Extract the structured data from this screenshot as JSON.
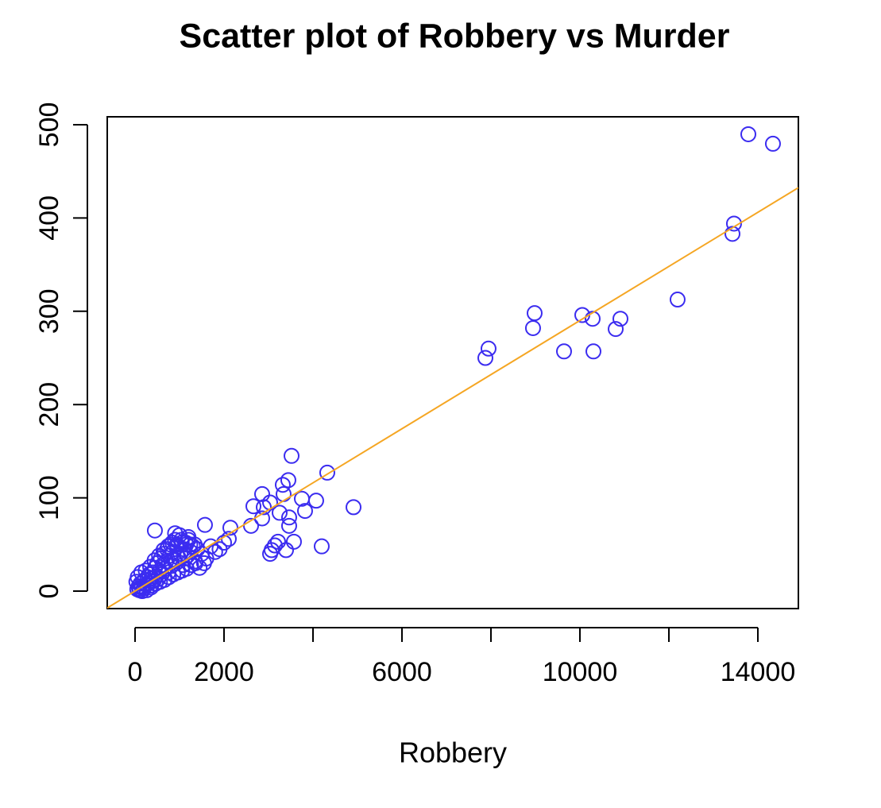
{
  "chart_data": {
    "type": "scatter",
    "title": "Scatter plot of Robbery vs Murder",
    "x_label": "Robbery",
    "color": "#3b2cf0",
    "fit": {
      "intercept": 0.1,
      "slope": 0.029,
      "color": "#f5a623"
    },
    "xlim": [
      -625,
      14911
    ],
    "ylim": [
      -18.7,
      508.5
    ],
    "xticks": [
      0,
      2000,
      {
        "value": 4000,
        "label": null
      },
      6000,
      {
        "value": 8000,
        "label": null
      },
      10000,
      {
        "value": 12000,
        "label": null
      },
      14000
    ],
    "yticks": [
      0,
      100,
      200,
      300,
      400,
      500
    ],
    "x": [
      14339,
      13786,
      13429,
      13464,
      12196,
      10911,
      10804,
      10304,
      10286,
      10054,
      9643,
      8982,
      8946,
      7946,
      7875,
      4911,
      4321,
      4196,
      4071,
      3821,
      3750,
      3571,
      3518,
      3446,
      3321,
      3339,
      3464,
      3464,
      3393,
      3214,
      3143,
      3071,
      3036,
      3250,
      3036,
      2893,
      2857,
      2661,
      2607,
      2857,
      50,
      80,
      100,
      120,
      150,
      180,
      200,
      220,
      250,
      280,
      300,
      320,
      350,
      380,
      400,
      420,
      450,
      480,
      500,
      520,
      550,
      580,
      600,
      620,
      650,
      680,
      700,
      720,
      750,
      780,
      800,
      820,
      850,
      880,
      900,
      920,
      950,
      980,
      1000,
      1020,
      1050,
      1080,
      1100,
      1120,
      1150,
      1180,
      1200,
      1250,
      1300,
      1350,
      1400,
      1450,
      1500,
      1550,
      1600,
      1700,
      1800,
      1900,
      446,
      900,
      1200,
      1571,
      2000,
      2107,
      2143,
      30,
      60,
      90,
      140,
      160,
      240,
      260,
      340,
      360,
      440,
      460,
      540,
      560,
      640,
      660,
      740,
      760,
      840,
      860,
      940,
      960,
      1040,
      1060,
      1140,
      1160,
      1240,
      1260,
      1340,
      1360
    ],
    "y": [
      479.6,
      489.8,
      383,
      394,
      312.6,
      292,
      281,
      257,
      292,
      296,
      257,
      298,
      282,
      260,
      250,
      90,
      127,
      48,
      97,
      86,
      99,
      53,
      145,
      119,
      114,
      104,
      79,
      70,
      44,
      53,
      49,
      44,
      40,
      84,
      95,
      90,
      104,
      91,
      70,
      78,
      2,
      5,
      1,
      8,
      4,
      10,
      3,
      12,
      7,
      15,
      9,
      18,
      6,
      14,
      20,
      11,
      25,
      16,
      30,
      13,
      22,
      35,
      18,
      28,
      40,
      24,
      32,
      45,
      20,
      38,
      50,
      27,
      42,
      33,
      55,
      30,
      48,
      36,
      60,
      40,
      52,
      28,
      45,
      35,
      50,
      38,
      55,
      42,
      48,
      32,
      45,
      25,
      40,
      30,
      35,
      48,
      42,
      45,
      65,
      62,
      58,
      71,
      52,
      56,
      68,
      10,
      15,
      3,
      20,
      0,
      22,
      1,
      26,
      4,
      33,
      8,
      38,
      10,
      44,
      12,
      48,
      15,
      52,
      18,
      50,
      20,
      55,
      22,
      52,
      24,
      50,
      28,
      50,
      30
    ]
  }
}
